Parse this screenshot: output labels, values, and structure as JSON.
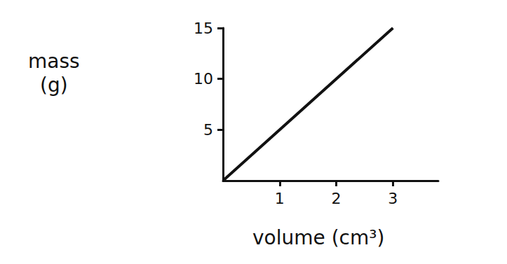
{
  "chart_data": {
    "type": "line",
    "x_label": "volume (cm³)",
    "y_label": "mass (g)",
    "x": [
      0,
      3
    ],
    "values": [
      0,
      15
    ],
    "color": "#111111",
    "xlim": [
      0,
      3.8
    ],
    "xticks": [
      1,
      2,
      3
    ],
    "ylim": [
      0,
      15
    ],
    "yticks": [
      5,
      10,
      15
    ],
    "grid": false
  }
}
